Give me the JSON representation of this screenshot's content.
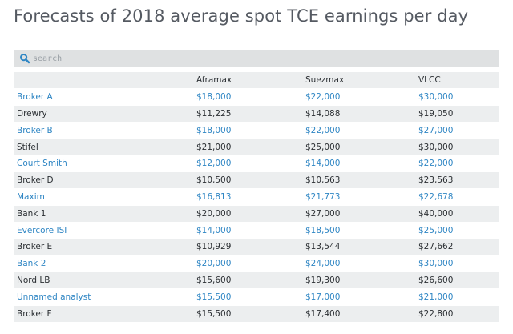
{
  "title": "Forecasts of 2018 average spot TCE earnings per day",
  "search": {
    "placeholder": "search"
  },
  "table": {
    "headers": [
      "",
      "Aframax",
      "Suezmax",
      "VLCC"
    ],
    "rows": [
      [
        "Broker A",
        "$18,000",
        "$22,000",
        "$30,000"
      ],
      [
        "Drewry",
        "$11,225",
        "$14,088",
        "$19,050"
      ],
      [
        "Broker B",
        "$18,000",
        "$22,000",
        "$27,000"
      ],
      [
        "Stifel",
        "$21,000",
        "$25,000",
        "$30,000"
      ],
      [
        "Court Smith",
        "$12,000",
        "$14,000",
        "$22,000"
      ],
      [
        "Broker D",
        "$10,500",
        "$10,563",
        "$23,563"
      ],
      [
        "Maxim",
        "$16,813",
        "$21,773",
        "$22,678"
      ],
      [
        "Bank 1",
        "$20,000",
        "$27,000",
        "$40,000"
      ],
      [
        "Evercore ISI",
        "$14,000",
        "$18,500",
        "$25,000"
      ],
      [
        "Broker E",
        "$10,929",
        "$13,544",
        "$27,662"
      ],
      [
        "Bank 2",
        "$20,000",
        "$24,000",
        "$30,000"
      ],
      [
        "Nord LB",
        "$15,600",
        "$19,300",
        "$26,600"
      ],
      [
        "Unnamed analyst",
        "$15,500",
        "$17,000",
        "$21,000"
      ],
      [
        "Broker F",
        "$15,500",
        "$17,400",
        "$22,800"
      ]
    ]
  },
  "colors": {
    "title_text": "#555a62",
    "link_text": "#2f86c4",
    "body_text": "#2b2f33",
    "stripe": "#eceeef",
    "search_bg": "#dfe1e2"
  },
  "icons": {
    "search": "search-icon"
  }
}
